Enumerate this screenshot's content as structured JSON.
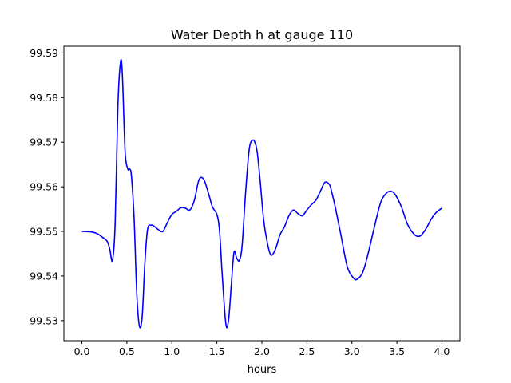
{
  "chart_data": {
    "type": "line",
    "title": "Water Depth h at gauge 110",
    "xlabel": "hours",
    "ylabel": "",
    "xlim": [
      -0.2,
      4.2
    ],
    "ylim": [
      99.5255,
      99.5915
    ],
    "grid": false,
    "x_ticks": [
      0.0,
      0.5,
      1.0,
      1.5,
      2.0,
      2.5,
      3.0,
      3.5,
      4.0
    ],
    "x_tick_labels": [
      "0.0",
      "0.5",
      "1.0",
      "1.5",
      "2.0",
      "2.5",
      "3.0",
      "3.5",
      "4.0"
    ],
    "y_ticks": [
      99.53,
      99.54,
      99.55,
      99.56,
      99.57,
      99.58,
      99.59
    ],
    "y_tick_labels": [
      "99.53",
      "99.54",
      "99.55",
      "99.56",
      "99.57",
      "99.58",
      "99.59"
    ],
    "series": [
      {
        "color": "#0000ff",
        "x": [
          0.0,
          0.1,
          0.17,
          0.22,
          0.28,
          0.31,
          0.34,
          0.37,
          0.4,
          0.43,
          0.45,
          0.48,
          0.51,
          0.53,
          0.55,
          0.58,
          0.61,
          0.64,
          0.67,
          0.7,
          0.73,
          0.77,
          0.8,
          0.85,
          0.9,
          0.95,
          1.0,
          1.05,
          1.1,
          1.15,
          1.2,
          1.25,
          1.3,
          1.35,
          1.4,
          1.45,
          1.5,
          1.53,
          1.56,
          1.6,
          1.63,
          1.66,
          1.69,
          1.72,
          1.75,
          1.78,
          1.82,
          1.86,
          1.9,
          1.93,
          1.95,
          1.98,
          2.02,
          2.06,
          2.1,
          2.15,
          2.2,
          2.25,
          2.3,
          2.35,
          2.4,
          2.45,
          2.5,
          2.55,
          2.6,
          2.65,
          2.7,
          2.75,
          2.78,
          2.82,
          2.88,
          2.95,
          3.02,
          3.06,
          3.12,
          3.18,
          3.25,
          3.32,
          3.38,
          3.43,
          3.48,
          3.55,
          3.62,
          3.7,
          3.76,
          3.82,
          3.88,
          3.94,
          4.0
        ],
        "y": [
          99.55,
          99.5499,
          99.5495,
          99.5488,
          99.5478,
          99.546,
          99.5435,
          99.552,
          99.578,
          99.588,
          99.585,
          99.568,
          99.564,
          99.564,
          99.5625,
          99.553,
          99.536,
          99.5287,
          99.531,
          99.543,
          99.5505,
          99.5514,
          99.5512,
          99.5504,
          99.55,
          99.552,
          99.5538,
          99.5545,
          99.5553,
          99.5552,
          99.5548,
          99.557,
          99.5615,
          99.5618,
          99.559,
          99.5555,
          99.5538,
          99.55,
          99.54,
          99.5292,
          99.5302,
          99.538,
          99.5453,
          99.544,
          99.5435,
          99.5468,
          99.559,
          99.5685,
          99.5705,
          99.5695,
          99.5675,
          99.5615,
          99.5525,
          99.5475,
          99.5447,
          99.546,
          99.5492,
          99.551,
          99.5535,
          99.5548,
          99.554,
          99.5535,
          99.5548,
          99.556,
          99.557,
          99.559,
          99.561,
          99.5605,
          99.5585,
          99.555,
          99.549,
          99.542,
          99.5395,
          99.5393,
          99.5408,
          99.545,
          99.551,
          99.5565,
          99.5585,
          99.559,
          99.5583,
          99.5555,
          99.5515,
          99.5492,
          99.549,
          99.5505,
          99.5527,
          99.5543,
          99.5552
        ]
      }
    ]
  }
}
